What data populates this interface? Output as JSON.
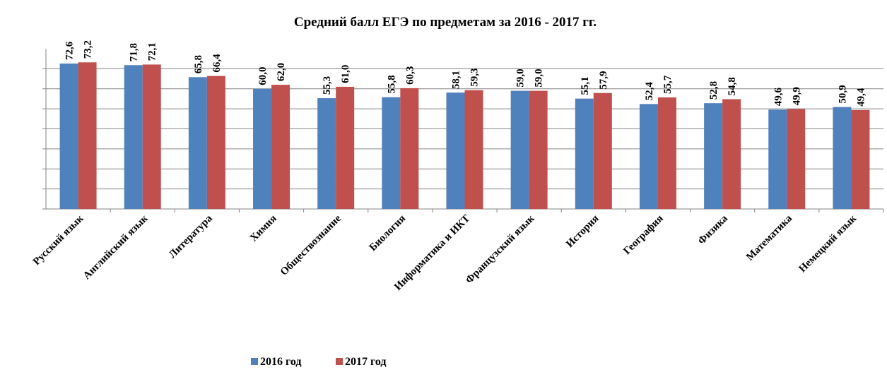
{
  "chart_data": {
    "type": "bar",
    "title": "Средний балл ЕГЭ по предметам за 2016 - 2017 гг.",
    "categories": [
      "Русский язык",
      "Английский язык",
      "Литература",
      "Химия",
      "Обществознание",
      "Биология",
      "Информатика и ИКТ",
      "Французский язык",
      "История",
      "География",
      "Физика",
      "Математика",
      "Немецкий язык"
    ],
    "series": [
      {
        "name": "2016 год",
        "color": "#4f81bd",
        "values": [
          72.6,
          71.8,
          65.8,
          60.0,
          55.3,
          55.8,
          58.1,
          59.0,
          55.1,
          52.4,
          52.8,
          49.6,
          50.9
        ],
        "value_labels": [
          "72,6",
          "71,8",
          "65,8",
          "60,0",
          "55,3",
          "55,8",
          "58,1",
          "59,0",
          "55,1",
          "52,4",
          "52,8",
          "49,6",
          "50,9"
        ]
      },
      {
        "name": "2017 год",
        "color": "#c0504d",
        "values": [
          73.2,
          72.1,
          66.4,
          62.0,
          61.0,
          60.3,
          59.3,
          59.0,
          57.9,
          55.7,
          54.8,
          49.9,
          49.4
        ],
        "value_labels": [
          "73,2",
          "72,1",
          "66,4",
          "62,0",
          "61,0",
          "60,3",
          "59,3",
          "59,0",
          "57,9",
          "55,7",
          "54,8",
          "49,9",
          "49,4"
        ]
      }
    ],
    "ylim": [
      0,
      80
    ],
    "yticks": [
      0,
      10,
      20,
      30,
      40,
      50,
      60,
      70
    ],
    "grid": true,
    "legend": "bottom"
  }
}
